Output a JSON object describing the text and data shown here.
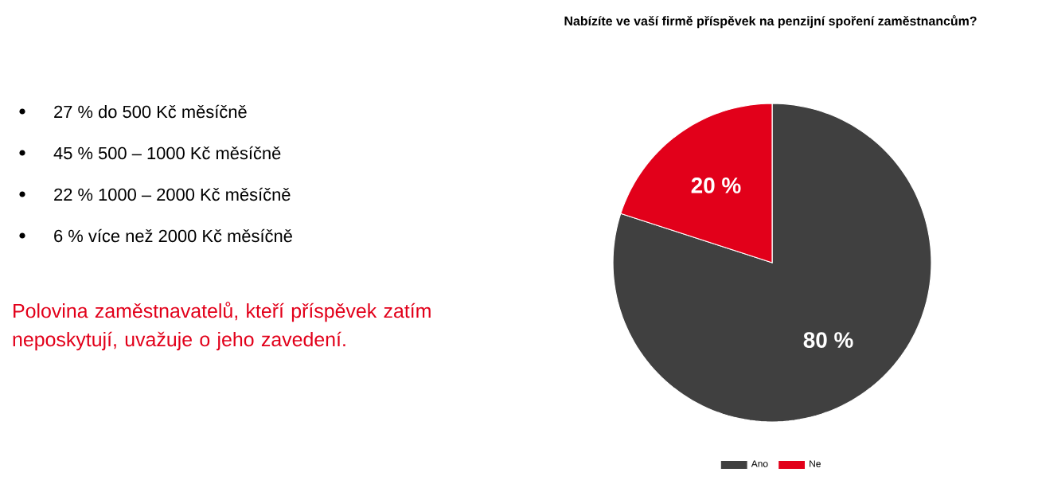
{
  "chart_data": {
    "type": "pie",
    "title": "Nabízíte ve vaší firmě příspěvek na penzijní spoření zaměstnancům?",
    "categories": [
      "Ano",
      "Ne"
    ],
    "values": [
      80,
      20
    ],
    "colors": [
      "#404040",
      "#e2001a"
    ],
    "value_labels": [
      "80 %",
      "20 %"
    ],
    "legend": "bottom",
    "annotations": [
      "27 % do 500 Kč měsíčně",
      "45 % 500 – 1000 Kč měsíčně",
      "22 % 1000 – 2000 Kč měsíčně",
      "6 % více než 2000 Kč měsíčně",
      "Polovina zaměstnavatelů, kteří příspěvek zatím neposkytují, uvažuje o jeho zavedení."
    ]
  }
}
